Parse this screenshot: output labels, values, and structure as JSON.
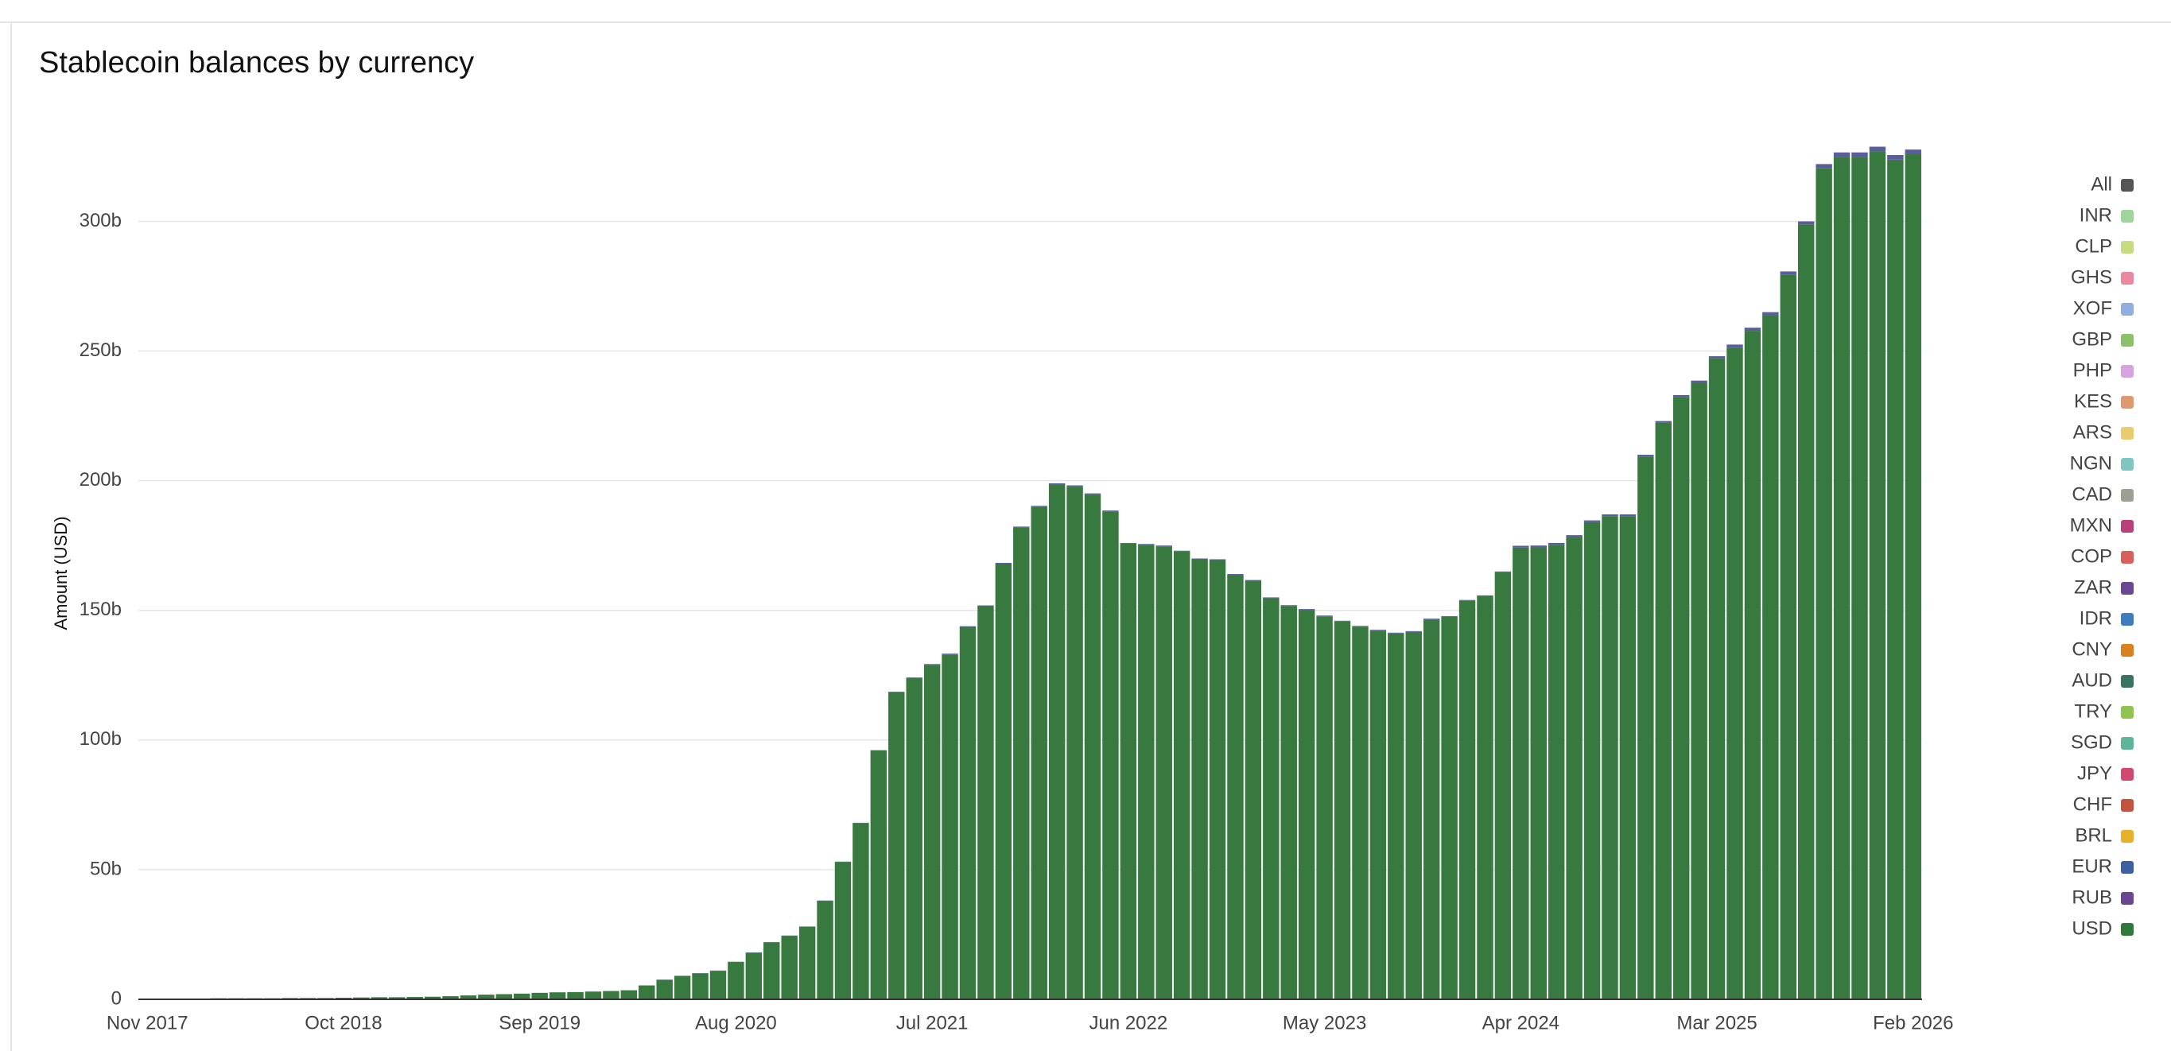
{
  "chart_data": {
    "type": "stacked-bar",
    "title": "Stablecoin balances by currency",
    "y_label": "Amount (USD)",
    "categories": [
      "Nov 2017",
      null,
      null,
      null,
      null,
      null,
      null,
      null,
      null,
      null,
      null,
      "Oct 2018",
      null,
      null,
      null,
      null,
      null,
      null,
      null,
      null,
      null,
      null,
      "Sep 2019",
      null,
      null,
      null,
      null,
      null,
      null,
      null,
      null,
      null,
      null,
      "Aug 2020",
      null,
      null,
      null,
      null,
      null,
      null,
      null,
      null,
      null,
      null,
      "Jul 2021",
      null,
      null,
      null,
      null,
      null,
      null,
      null,
      null,
      null,
      null,
      "Jun 2022",
      null,
      null,
      null,
      null,
      null,
      null,
      null,
      null,
      null,
      null,
      "May 2023",
      null,
      null,
      null,
      null,
      null,
      null,
      null,
      null,
      null,
      null,
      "Apr 2024",
      null,
      null,
      null,
      null,
      null,
      null,
      null,
      null,
      null,
      null,
      "Mar 2025",
      null,
      null,
      null,
      null,
      null,
      null,
      null,
      null,
      null,
      null,
      "Feb 2026"
    ],
    "series": [
      {
        "name": "USD",
        "color": "#37793f",
        "values": [
          300000000.0,
          300000000.0,
          300000000.0,
          300000000.0,
          400000000.0,
          400000000.0,
          400000000.0,
          400000000.0,
          500000000.0,
          500000000.0,
          500000000.0,
          600000000.0,
          700000000.0,
          800000000.0,
          800000000.0,
          900000000.0,
          1000000000.0,
          1200000000.0,
          1500000000.0,
          1800000000.0,
          2000000000.0,
          2200000000.0,
          2500000000.0,
          2700000000.0,
          2800000000.0,
          3000000000.0,
          3200000000.0,
          3500000000.0,
          5300000000.0,
          7500000000.0,
          9000000000.0,
          10000000000.0,
          11000000000.0,
          14400000000.0,
          18000000000.0,
          22000000000.0,
          24500000000.0,
          28000000000.0,
          38000000000.0,
          53000000000.0,
          68000000000.0,
          96000000000.0,
          118500000000.0,
          124000000000.0,
          129000000000.0,
          133000000000.0,
          143600000000.0,
          151600000000.0,
          168000000000.0,
          182000000000.0,
          190000000000.0,
          198500000000.0,
          197700000000.0,
          194600000000.0,
          188200000000.0,
          175700000000.0,
          175300000000.0,
          174700000000.0,
          172700000000.0,
          169700000000.0,
          169400000000.0,
          163700000000.0,
          161400000000.0,
          154700000000.0,
          151700000000.0,
          150200000000.0,
          147700000000.0,
          145700000000.0,
          143700000000.0,
          142200000000.0,
          141100000000.0,
          141700000000.0,
          146500000000.0,
          147500000000.0,
          153700000000.0,
          155500000000.0,
          164700000000.0,
          174200000000.0,
          174300000000.0,
          175300000000.0,
          178300000000.0,
          184000000000.0,
          186300000000.0,
          186300000000.0,
          209300000000.0,
          222300000000.0,
          232300000000.0,
          237900000000.0,
          247300000000.0,
          251300000000.0,
          257800000000.0,
          263800000000.0,
          279500000000.0,
          298800000000.0,
          320600000000.0,
          324800000000.0,
          324800000000.0,
          327000000000.0,
          323800000000.0,
          325900000000.0
        ]
      },
      {
        "name": "EUR",
        "color": "#5a5c9c",
        "values": [
          0,
          0,
          0,
          0,
          0,
          0,
          0,
          0,
          0,
          0,
          0,
          0,
          0,
          0,
          0,
          0,
          0,
          0,
          0,
          0,
          0,
          0,
          0,
          0,
          0,
          0,
          0,
          0,
          100000000.0,
          100000000.0,
          100000000.0,
          100000000.0,
          100000000.0,
          100000000.0,
          100000000.0,
          100000000.0,
          100000000.0,
          100000000.0,
          100000000.0,
          100000000.0,
          100000000.0,
          100000000.0,
          100000000.0,
          100000000.0,
          300000000.0,
          300000000.0,
          300000000.0,
          300000000.0,
          300000000.0,
          300000000.0,
          300000000.0,
          500000000.0,
          500000000.0,
          500000000.0,
          300000000.0,
          300000000.0,
          300000000.0,
          300000000.0,
          300000000.0,
          300000000.0,
          300000000.0,
          300000000.0,
          300000000.0,
          300000000.0,
          300000000.0,
          300000000.0,
          300000000.0,
          300000000.0,
          300000000.0,
          300000000.0,
          300000000.0,
          300000000.0,
          300000000.0,
          300000000.0,
          300000000.0,
          300000000.0,
          300000000.0,
          700000000.0,
          700000000.0,
          700000000.0,
          700000000.0,
          700000000.0,
          700000000.0,
          700000000.0,
          700000000.0,
          700000000.0,
          700000000.0,
          700000000.0,
          700000000.0,
          1200000000.0,
          1200000000.0,
          1200000000.0,
          1200000000.0,
          1200000000.0,
          1500000000.0,
          1800000000.0,
          1800000000.0,
          1800000000.0,
          1800000000.0,
          1800000000.0
        ]
      }
    ],
    "legend": [
      {
        "name": "All",
        "color": "#555555"
      },
      {
        "name": "INR",
        "color": "#9fd49a"
      },
      {
        "name": "CLP",
        "color": "#c6dc7f"
      },
      {
        "name": "GHS",
        "color": "#e889a0"
      },
      {
        "name": "XOF",
        "color": "#92aee0"
      },
      {
        "name": "GBP",
        "color": "#8dc06a"
      },
      {
        "name": "PHP",
        "color": "#d6a2e0"
      },
      {
        "name": "KES",
        "color": "#e0996e"
      },
      {
        "name": "ARS",
        "color": "#ebcb70"
      },
      {
        "name": "NGN",
        "color": "#7fc6c0"
      },
      {
        "name": "CAD",
        "color": "#9e9e94"
      },
      {
        "name": "MXN",
        "color": "#b8417d"
      },
      {
        "name": "COP",
        "color": "#d9605a"
      },
      {
        "name": "ZAR",
        "color": "#6a4793"
      },
      {
        "name": "IDR",
        "color": "#3f7cbf"
      },
      {
        "name": "CNY",
        "color": "#d98020"
      },
      {
        "name": "AUD",
        "color": "#3a7360"
      },
      {
        "name": "TRY",
        "color": "#8ec44f"
      },
      {
        "name": "SGD",
        "color": "#5db59a"
      },
      {
        "name": "JPY",
        "color": "#d44870"
      },
      {
        "name": "CHF",
        "color": "#c4533e"
      },
      {
        "name": "BRL",
        "color": "#e8b12c"
      },
      {
        "name": "EUR",
        "color": "#3d5fa4"
      },
      {
        "name": "RUB",
        "color": "#6b4592"
      },
      {
        "name": "USD",
        "color": "#2f7a3a"
      }
    ],
    "ylim": [
      0,
      340000000000.0
    ],
    "yticks": [
      0,
      {
        "value": 50000000000.0,
        "label": "50b"
      },
      {
        "value": 100000000000.0,
        "label": "100b"
      },
      {
        "value": 150000000000.0,
        "label": "150b"
      },
      {
        "value": 200000000000.0,
        "label": "200b"
      },
      {
        "value": 250000000000.0,
        "label": "250b"
      },
      {
        "value": 300000000000.0,
        "label": "300b"
      }
    ],
    "grid": true
  }
}
